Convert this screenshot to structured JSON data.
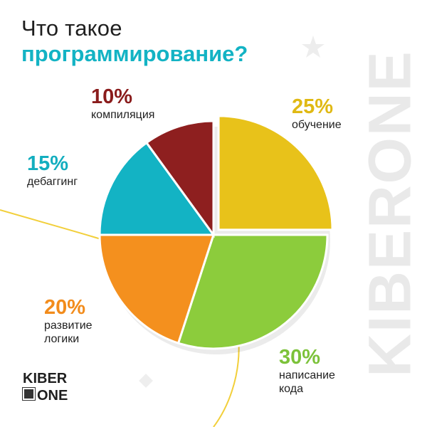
{
  "title": {
    "line1": "Что такое",
    "line2": "программирование?"
  },
  "watermark": "KIBERONE",
  "logo": {
    "line1": "KIBER",
    "line2": "ONE",
    "glyph": "1"
  },
  "chart_data": {
    "type": "pie",
    "title": "Что такое программирование?",
    "slices": [
      {
        "label": "обучение",
        "value": 25,
        "pct_text": "25%",
        "color": "#e8c21a",
        "text_color": "#e0b914"
      },
      {
        "label": "написание кода",
        "value": 30,
        "pct_text": "30%",
        "color": "#8ccc3c",
        "text_color": "#7cc23a"
      },
      {
        "label": "развитие логики",
        "value": 20,
        "pct_text": "20%",
        "color": "#f4901e",
        "text_color": "#f28c1c"
      },
      {
        "label": "дебаггинг",
        "value": 15,
        "pct_text": "15%",
        "color": "#13b3c4",
        "text_color": "#13aebf"
      },
      {
        "label": "компиляция",
        "value": 10,
        "pct_text": "10%",
        "color": "#8e1f1f",
        "text_color": "#8a1c1c"
      }
    ],
    "labels_display": {
      "обучение": [
        "обучение"
      ],
      "написание кода": [
        "написание",
        "кода"
      ],
      "развитие логики": [
        "развитие",
        "логики"
      ],
      "дебаггинг": [
        "дебаггинг"
      ],
      "компиляция": [
        "компиляция"
      ]
    }
  }
}
